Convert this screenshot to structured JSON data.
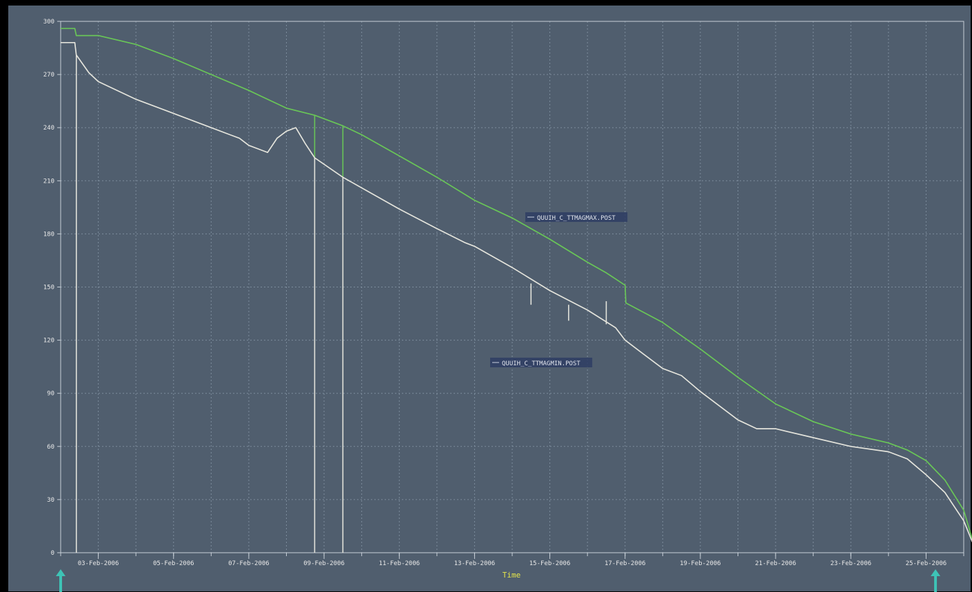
{
  "chart_data": {
    "type": "line",
    "title": "",
    "xlabel": "Time",
    "ylabel": "",
    "ylim": [
      0,
      300
    ],
    "xlim": [
      "2006-02-02T00:00",
      "2006-02-26T00:00"
    ],
    "yticks": [
      0,
      30,
      60,
      90,
      120,
      150,
      180,
      210,
      240,
      270,
      300
    ],
    "xtick_labels": [
      "03-Feb-2006",
      "05-Feb-2006",
      "07-Feb-2006",
      "09-Feb-2006",
      "11-Feb-2006",
      "13-Feb-2006",
      "15-Feb-2006",
      "17-Feb-2006",
      "19-Feb-2006",
      "21-Feb-2006",
      "23-Feb-2006",
      "25-Feb-2006"
    ],
    "xtick_dates": [
      "2006-02-03",
      "2006-02-05",
      "2006-02-07",
      "2006-02-09",
      "2006-02-11",
      "2006-02-13",
      "2006-02-15",
      "2006-02-17",
      "2006-02-19",
      "2006-02-21",
      "2006-02-23",
      "2006-02-25"
    ],
    "grid": true,
    "legend": "inline labels near each series",
    "colors": {
      "background": "#505e6e",
      "frame": "#000000",
      "grid": "#8fa0b0",
      "axis_text": "#e8e8e8",
      "xlabel": "#e6e64a",
      "max_series": "#69c657",
      "min_series": "#e4e4dc",
      "arrow": "#3ec3b6",
      "label_box": "#2e3d64"
    },
    "series": [
      {
        "name": "QUUIH_C_TTMAGMAX.POST",
        "color": "#69c657",
        "points": [
          [
            "2006-02-02T00:00",
            296
          ],
          [
            "2006-02-02T09:00",
            296
          ],
          [
            "2006-02-02T10:00",
            292
          ],
          [
            "2006-02-03T00:00",
            292
          ],
          [
            "2006-02-04T00:00",
            287
          ],
          [
            "2006-02-05T00:00",
            279
          ],
          [
            "2006-02-06T00:00",
            270
          ],
          [
            "2006-02-07T00:00",
            261
          ],
          [
            "2006-02-08T00:00",
            251
          ],
          [
            "2006-02-08T18:00",
            247
          ],
          [
            "2006-02-09T12:00",
            241
          ],
          [
            "2006-02-10T00:00",
            236
          ],
          [
            "2006-02-11T00:00",
            224
          ],
          [
            "2006-02-12T00:00",
            212
          ],
          [
            "2006-02-13T00:00",
            199
          ],
          [
            "2006-02-14T00:00",
            189
          ],
          [
            "2006-02-15T00:00",
            177
          ],
          [
            "2006-02-16T00:00",
            164
          ],
          [
            "2006-02-16T12:00",
            158
          ],
          [
            "2006-02-17T00:00",
            151
          ],
          [
            "2006-02-17T00:30",
            141
          ],
          [
            "2006-02-18T00:00",
            130
          ],
          [
            "2006-02-19T00:00",
            115
          ],
          [
            "2006-02-20T00:00",
            99
          ],
          [
            "2006-02-21T00:00",
            84
          ],
          [
            "2006-02-22T00:00",
            74
          ],
          [
            "2006-02-23T00:00",
            67
          ],
          [
            "2006-02-24T00:00",
            62
          ],
          [
            "2006-02-24T12:00",
            58
          ],
          [
            "2006-02-25T00:00",
            52
          ],
          [
            "2006-02-25T12:00",
            41
          ],
          [
            "2006-02-26T00:00",
            24
          ],
          [
            "2006-02-26T06:00",
            6
          ],
          [
            "2006-02-26T12:00",
            5
          ]
        ]
      },
      {
        "name": "QUUIH_C_TTMAGMIN.POST",
        "color": "#e4e4dc",
        "points": [
          [
            "2006-02-02T00:00",
            288
          ],
          [
            "2006-02-02T09:00",
            288
          ],
          [
            "2006-02-02T10:00",
            281
          ],
          [
            "2006-02-02T18:00",
            271
          ],
          [
            "2006-02-03T00:00",
            266
          ],
          [
            "2006-02-04T00:00",
            256
          ],
          [
            "2006-02-05T00:00",
            248
          ],
          [
            "2006-02-06T00:00",
            240
          ],
          [
            "2006-02-06T12:00",
            236
          ],
          [
            "2006-02-06T18:00",
            234
          ],
          [
            "2006-02-07T00:00",
            230
          ],
          [
            "2006-02-07T12:00",
            226
          ],
          [
            "2006-02-07T18:00",
            234
          ],
          [
            "2006-02-08T00:00",
            238
          ],
          [
            "2006-02-08T06:00",
            240
          ],
          [
            "2006-02-08T12:00",
            231
          ],
          [
            "2006-02-08T18:00",
            223
          ],
          [
            "2006-02-09T12:00",
            212
          ],
          [
            "2006-02-10T00:00",
            206
          ],
          [
            "2006-02-11T00:00",
            194
          ],
          [
            "2006-02-12T00:00",
            183
          ],
          [
            "2006-02-12T18:00",
            175
          ],
          [
            "2006-02-13T00:00",
            173
          ],
          [
            "2006-02-14T00:00",
            161
          ],
          [
            "2006-02-15T00:00",
            148
          ],
          [
            "2006-02-16T00:00",
            137
          ],
          [
            "2006-02-16T18:00",
            127
          ],
          [
            "2006-02-17T00:00",
            120
          ],
          [
            "2006-02-17T12:00",
            112
          ],
          [
            "2006-02-18T00:00",
            104
          ],
          [
            "2006-02-18T12:00",
            100
          ],
          [
            "2006-02-19T00:00",
            91
          ],
          [
            "2006-02-20T00:00",
            75
          ],
          [
            "2006-02-20T12:00",
            70
          ],
          [
            "2006-02-21T00:00",
            70
          ],
          [
            "2006-02-22T00:00",
            65
          ],
          [
            "2006-02-23T00:00",
            60
          ],
          [
            "2006-02-24T00:00",
            57
          ],
          [
            "2006-02-24T12:00",
            53
          ],
          [
            "2006-02-25T00:00",
            44
          ],
          [
            "2006-02-25T12:00",
            34
          ],
          [
            "2006-02-26T00:00",
            18
          ],
          [
            "2006-02-26T06:00",
            5
          ],
          [
            "2006-02-26T12:00",
            5
          ]
        ]
      }
    ],
    "spikes": [
      {
        "series": "QUUIH_C_TTMAGMIN.POST",
        "x": "2006-02-02T10:00",
        "from": 281,
        "to": 0
      },
      {
        "series": "QUUIH_C_TTMAGMIN.POST",
        "x": "2006-02-08T18:00",
        "from": 223,
        "to": 0
      },
      {
        "series": "QUUIH_C_TTMAGMAX.POST",
        "x": "2006-02-08T18:00",
        "from": 247,
        "to": 223
      },
      {
        "series": "QUUIH_C_TTMAGMIN.POST",
        "x": "2006-02-09T12:00",
        "from": 212,
        "to": 0
      },
      {
        "series": "QUUIH_C_TTMAGMAX.POST",
        "x": "2006-02-09T12:00",
        "from": 241,
        "to": 212
      },
      {
        "series": "QUUIH_C_TTMAGMIN.POST",
        "x": "2006-02-14T12:00",
        "from": 152,
        "to": 140
      },
      {
        "series": "QUUIH_C_TTMAGMIN.POST",
        "x": "2006-02-15T12:00",
        "from": 140,
        "to": 131
      },
      {
        "series": "QUUIH_C_TTMAGMIN.POST",
        "x": "2006-02-16T12:00",
        "from": 129,
        "to": 142
      }
    ],
    "markers": [
      {
        "type": "arrow-up",
        "x": "2006-02-02T00:00"
      },
      {
        "type": "arrow-up",
        "x": "2006-02-25T06:00"
      }
    ]
  }
}
